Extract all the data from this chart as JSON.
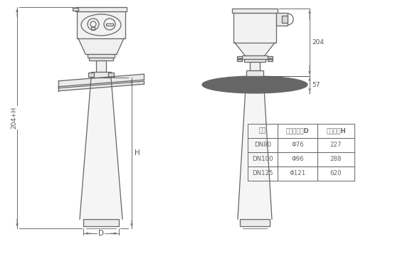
{
  "bg_color": "#ffffff",
  "line_color": "#666666",
  "table_header": [
    "法兰",
    "喇叭口直径D",
    "喇叭高度H"
  ],
  "table_rows": [
    [
      "DN80",
      "Φ76",
      "227"
    ],
    [
      "DN100",
      "Φ96",
      "288"
    ],
    [
      "DN125",
      "Φ121",
      "620"
    ]
  ],
  "dim_204": "204",
  "dim_57": "57",
  "dim_H": "H",
  "dim_204H": "204+H",
  "dim_D": "D",
  "font_size": 6.5
}
